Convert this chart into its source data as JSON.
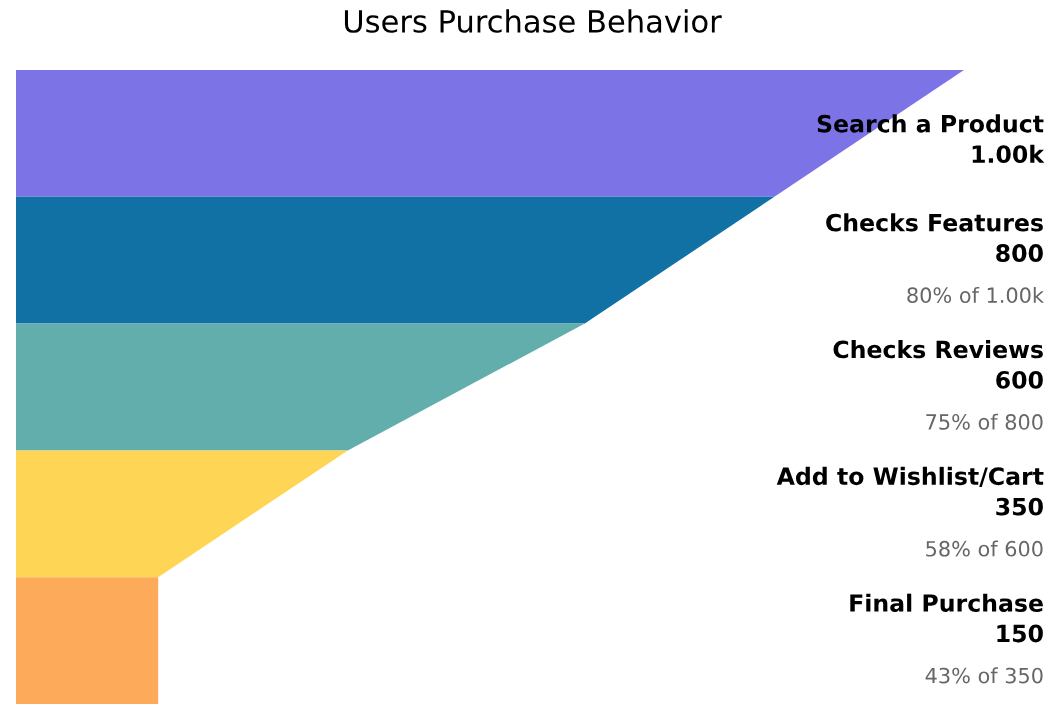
{
  "chart_data": {
    "type": "other",
    "title": "Users Purchase Behavior",
    "categories": [
      "Search a Product",
      "Checks Features",
      "Checks Reviews",
      "Add to Wishlist/Cart",
      "Final Purchase"
    ],
    "values": [
      1000,
      800,
      600,
      350,
      150
    ],
    "value_labels": [
      "1.00k",
      "800",
      "600",
      "350",
      "150"
    ],
    "colors": [
      "#7b73e6",
      "#1170a4",
      "#62aeac",
      "#ffd555",
      "#fdaa5b"
    ],
    "annotations": [
      "80% of 1.00k",
      "75% of 800",
      "58% of 600",
      "43% of 350"
    ]
  }
}
